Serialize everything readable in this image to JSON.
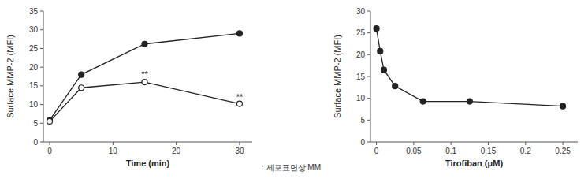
{
  "chart_data": [
    {
      "type": "line",
      "xlabel": "Time (min)",
      "ylabel": "Surface MMP-2 (MFI)",
      "xlim": [
        -1,
        32
      ],
      "xticks": [
        0,
        10,
        20,
        30
      ],
      "ylim": [
        0,
        35
      ],
      "yticks": [
        0,
        5,
        10,
        15,
        20,
        25,
        30,
        35
      ],
      "x": [
        0,
        5,
        15,
        30
      ],
      "series": [
        {
          "values": [
            5.8,
            18.0,
            26.2,
            29.0
          ],
          "errors": [
            0.3,
            0.5,
            0.5,
            0.4
          ],
          "color": "#222222",
          "marker": "circle"
        },
        {
          "values": [
            5.5,
            14.5,
            16.0,
            10.2
          ],
          "errors": [
            0.3,
            0.5,
            0.5,
            0.4
          ],
          "color": "#222222",
          "marker": "open-circle"
        }
      ],
      "annotations": [
        {
          "text": "**",
          "x": 15,
          "y": 17.2
        },
        {
          "text": "**",
          "x": 30,
          "y": 11.2
        }
      ]
    },
    {
      "type": "line",
      "xlabel": "Tirofiban (μM)",
      "ylabel": "Surface MMP-2 (MFI)",
      "xlim": [
        -0.008,
        0.27
      ],
      "xticks": [
        0,
        0.05,
        0.1,
        0.15,
        0.2,
        0.25
      ],
      "ylim": [
        0,
        30
      ],
      "yticks": [
        0,
        5,
        10,
        15,
        20,
        25,
        30
      ],
      "x": [
        0,
        0.005,
        0.01,
        0.025,
        0.0625,
        0.125,
        0.25
      ],
      "series": [
        {
          "values": [
            26.0,
            20.8,
            16.5,
            12.8,
            9.3,
            9.3,
            8.2
          ],
          "errors": [
            0.4,
            0.5,
            0.5,
            0.3,
            0.3,
            0.3,
            0.3
          ],
          "color": "#222222",
          "marker": "circle"
        }
      ]
    }
  ],
  "caption": ": 세포표면상 MM"
}
